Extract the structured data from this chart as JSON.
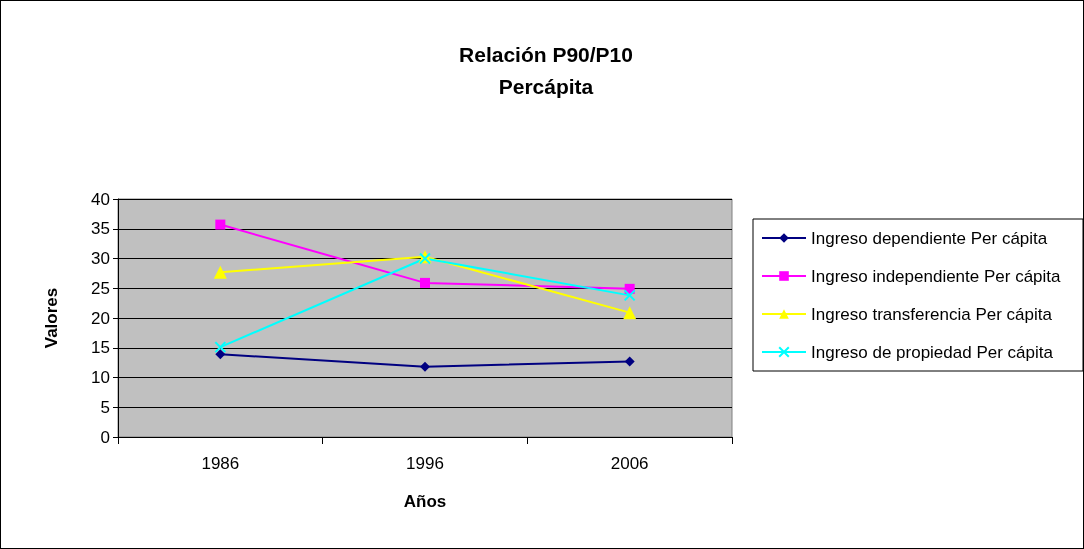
{
  "chart_data": {
    "type": "line",
    "title": "Relación P90/P10\nPercápita",
    "xlabel": "Años",
    "ylabel": "Valores",
    "categories": [
      "1986",
      "1996",
      "2006"
    ],
    "series": [
      {
        "name": "Ingreso dependiente Per cápita",
        "color": "#000080",
        "marker": "diamond",
        "values": [
          13.9,
          11.8,
          12.7
        ]
      },
      {
        "name": "Ingreso independiente Per cápita",
        "color": "#ff00ff",
        "marker": "square",
        "values": [
          35.7,
          25.9,
          24.9
        ]
      },
      {
        "name": "Ingreso transferencia Per cápita",
        "color": "#ffff00",
        "marker": "triangle",
        "values": [
          27.7,
          30.3,
          20.9
        ]
      },
      {
        "name": "Ingreso de propiedad Per cápita",
        "color": "#00ffff",
        "marker": "cross",
        "values": [
          15.1,
          30.0,
          23.8
        ]
      }
    ],
    "ylim": [
      0,
      40
    ],
    "yticks": [
      0,
      5,
      10,
      15,
      20,
      25,
      30,
      35,
      40
    ],
    "grid": "y",
    "legend": "right",
    "line_style": "solid"
  }
}
